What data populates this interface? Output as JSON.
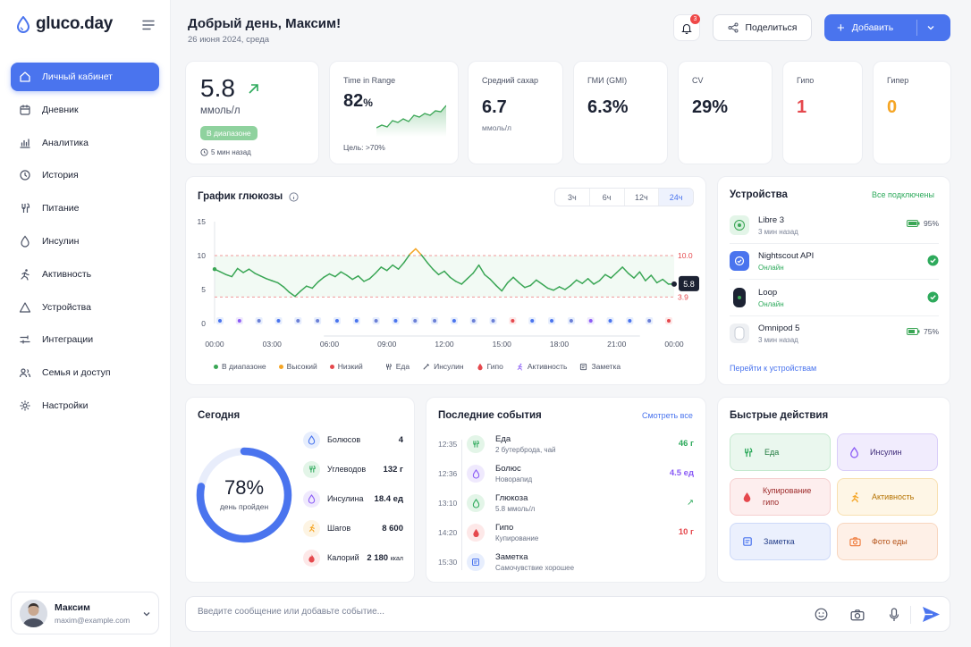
{
  "app": {
    "name": "gluco.day"
  },
  "nav": [
    {
      "label": "Личный кабинет",
      "icon": "home-icon"
    },
    {
      "label": "Дневник",
      "icon": "calendar-icon"
    },
    {
      "label": "Аналитика",
      "icon": "chart-icon"
    },
    {
      "label": "История",
      "icon": "clock-icon"
    },
    {
      "label": "Питание",
      "icon": "food-icon"
    },
    {
      "label": "Инсулин",
      "icon": "drop-icon"
    },
    {
      "label": "Активность",
      "icon": "activity-icon"
    },
    {
      "label": "Устройства",
      "icon": "triangle-icon"
    },
    {
      "label": "Интеграции",
      "icon": "integrations-icon"
    },
    {
      "label": "Семья и доступ",
      "icon": "family-icon"
    },
    {
      "label": "Настройки",
      "icon": "gear-icon"
    }
  ],
  "user": {
    "name": "Максим",
    "email": "maxim@example.com"
  },
  "header": {
    "greeting": "Добрый день, Максим!",
    "date": "26 июня 2024, среда",
    "notifications": "3",
    "share": "Поделиться",
    "add": "Добавить"
  },
  "current": {
    "value": "5.8",
    "unit": "ммоль/л",
    "badge": "В диапазоне",
    "updated": "5 мин назад"
  },
  "tir": {
    "label": "Time in Range",
    "value": "82",
    "unit": "%",
    "target": "Цель: >70%"
  },
  "avg": {
    "label": "Средний сахар",
    "value": "6.7",
    "unit": "ммоль/л"
  },
  "gmi": {
    "label": "ГМИ (GMI)",
    "value": "6.3%"
  },
  "cv": {
    "label": "CV",
    "value": "29%"
  },
  "hypo": {
    "label": "Гипо",
    "value": "1",
    "color": "#e5484d"
  },
  "hyper": {
    "label": "Гипер",
    "value": "0",
    "color": "#f5a524"
  },
  "chart": {
    "title": "График глюкозы",
    "tabs": [
      "3ч",
      "6ч",
      "12ч",
      "24ч"
    ],
    "active_tab": "24ч",
    "high_label": "10.0",
    "low_label": "3.9",
    "current_label": "5.8",
    "legend": {
      "in_range": "В диапазоне",
      "high": "Высокий",
      "low": "Низкий",
      "food": "Еда",
      "insulin": "Инсулин",
      "hypo": "Гипо",
      "activity": "Активность",
      "note": "Заметка"
    }
  },
  "chart_data": {
    "type": "line",
    "title": "График глюкозы",
    "x_ticks": [
      "00:00",
      "03:00",
      "06:00",
      "09:00",
      "12:00",
      "15:00",
      "18:00",
      "21:00",
      "00:00"
    ],
    "y_ticks": [
      0,
      5,
      10,
      15
    ],
    "ylim": [
      0,
      15
    ],
    "xlim": [
      0,
      24
    ],
    "target_range": [
      3.9,
      10.0
    ],
    "series": [
      {
        "x": [
          0,
          0.3,
          0.6,
          0.9,
          1.2,
          1.5,
          1.8,
          2.1,
          2.4,
          2.7,
          3.0,
          3.3,
          3.6,
          3.9,
          4.2,
          4.5,
          4.8,
          5.1,
          5.4,
          5.7,
          6.0,
          6.3,
          6.6,
          6.9,
          7.2,
          7.5,
          7.8,
          8.1,
          8.4,
          8.7,
          9.0,
          9.3,
          9.6,
          9.9,
          10.2,
          10.5,
          10.8,
          11.1,
          11.4,
          11.7,
          12.0,
          12.3,
          12.6,
          12.9,
          13.2,
          13.5,
          13.8,
          14.1,
          14.4,
          14.7,
          15.0,
          15.3,
          15.6,
          15.9,
          16.2,
          16.5,
          16.8,
          17.1,
          17.4,
          17.7,
          18.0,
          18.3,
          18.6,
          18.9,
          19.2,
          19.5,
          19.8,
          20.1,
          20.4,
          20.7,
          21.0,
          21.3,
          21.6,
          21.9,
          22.2,
          22.5,
          22.8,
          23.1,
          23.4,
          23.7,
          24.0
        ],
        "values": [
          8.0,
          7.6,
          7.2,
          6.9,
          8.1,
          7.5,
          8.0,
          7.4,
          7.0,
          6.6,
          6.3,
          6.0,
          5.4,
          4.6,
          4.0,
          4.8,
          5.5,
          5.2,
          6.1,
          6.8,
          7.3,
          6.9,
          7.6,
          7.1,
          6.5,
          7.0,
          6.2,
          6.6,
          7.4,
          8.3,
          7.8,
          8.6,
          8.0,
          9.0,
          10.2,
          11.0,
          10.1,
          9.0,
          8.0,
          7.2,
          7.7,
          6.8,
          6.2,
          5.8,
          6.6,
          7.4,
          8.6,
          7.2,
          6.5,
          5.6,
          4.8,
          6.0,
          6.8,
          6.0,
          5.3,
          5.6,
          6.4,
          5.8,
          5.2,
          4.9,
          5.4,
          5.0,
          5.6,
          6.4,
          5.9,
          6.6,
          5.8,
          6.3,
          7.2,
          6.7,
          7.5,
          8.3,
          7.4,
          6.7,
          7.6,
          6.3,
          7.1,
          6.0,
          6.5,
          5.8,
          5.8
        ],
        "name": "В диапазоне"
      }
    ],
    "events": [
      "insulin",
      "note",
      "food",
      "insulin",
      "food",
      "food",
      "insulin",
      "insulin",
      "food",
      "insulin",
      "food",
      "food",
      "insulin",
      "food",
      "food",
      "hypo",
      "insulin",
      "insulin",
      "food",
      "note",
      "insulin",
      "insulin",
      "food",
      "hypo"
    ],
    "colors": {
      "in_range": "#3aa655",
      "high": "#f5a524",
      "low": "#e5484d"
    }
  },
  "devices": {
    "title": "Устройства",
    "status": "Все подключены",
    "link": "Перейти к устройствам",
    "items": [
      {
        "name": "Libre 3",
        "sub": "3 мин назад",
        "battery": "95%",
        "icon": "sensor-icon"
      },
      {
        "name": "Nightscout API",
        "sub": "Онлайн",
        "icon": "api-icon"
      },
      {
        "name": "Loop",
        "sub": "Онлайн",
        "icon": "phone-icon"
      },
      {
        "name": "Omnipod 5",
        "sub": "3 мин назад",
        "battery": "75%",
        "icon": "pod-icon"
      }
    ]
  },
  "today": {
    "title": "Сегодня",
    "percent": "78%",
    "progress": 0.78,
    "caption": "день пройден",
    "items": [
      {
        "label": "Болюсов",
        "value": "4",
        "icon": "drop-icon"
      },
      {
        "label": "Углеводов",
        "value": "132 г",
        "icon": "food-icon"
      },
      {
        "label": "Инсулина",
        "value": "18.4 ед",
        "icon": "insulin-icon"
      },
      {
        "label": "Шагов",
        "value": "8 600",
        "icon": "steps-icon"
      },
      {
        "label": "Калорий",
        "value": "2 180",
        "unit": "ккал",
        "icon": "flame-icon"
      }
    ]
  },
  "events": {
    "title": "Последние события",
    "link": "Смотреть все",
    "items": [
      {
        "time": "12:35",
        "title": "Еда",
        "sub": "2 бутерброда, чай",
        "value": "46 г",
        "icon": "food-icon"
      },
      {
        "time": "12:36",
        "title": "Болюс",
        "sub": "Новорапид",
        "value": "4.5 ед",
        "icon": "drop-icon"
      },
      {
        "time": "13:10",
        "title": "Глюкоза",
        "sub": "5.8 ммоль/л",
        "value": "↗",
        "icon": "glucose-icon"
      },
      {
        "time": "14:20",
        "title": "Гипо",
        "sub": "Купирование",
        "value": "10 г",
        "icon": "hypo-icon"
      },
      {
        "time": "15:30",
        "title": "Заметка",
        "sub": "Самочувствие хорошее",
        "value": "",
        "icon": "note-icon"
      }
    ]
  },
  "quick": {
    "title": "Быстрые действия",
    "items": [
      {
        "label": "Еда",
        "icon": "food-icon"
      },
      {
        "label": "Инсулин",
        "icon": "insulin-icon"
      },
      {
        "label": "Купирование гипо",
        "icon": "hypo-icon"
      },
      {
        "label": "Активность",
        "icon": "activity-icon"
      },
      {
        "label": "Заметка",
        "icon": "note-icon"
      },
      {
        "label": "Фото еды",
        "icon": "camera-icon"
      }
    ]
  },
  "composer": {
    "placeholder": "Введите сообщение или добавьте событие..."
  }
}
